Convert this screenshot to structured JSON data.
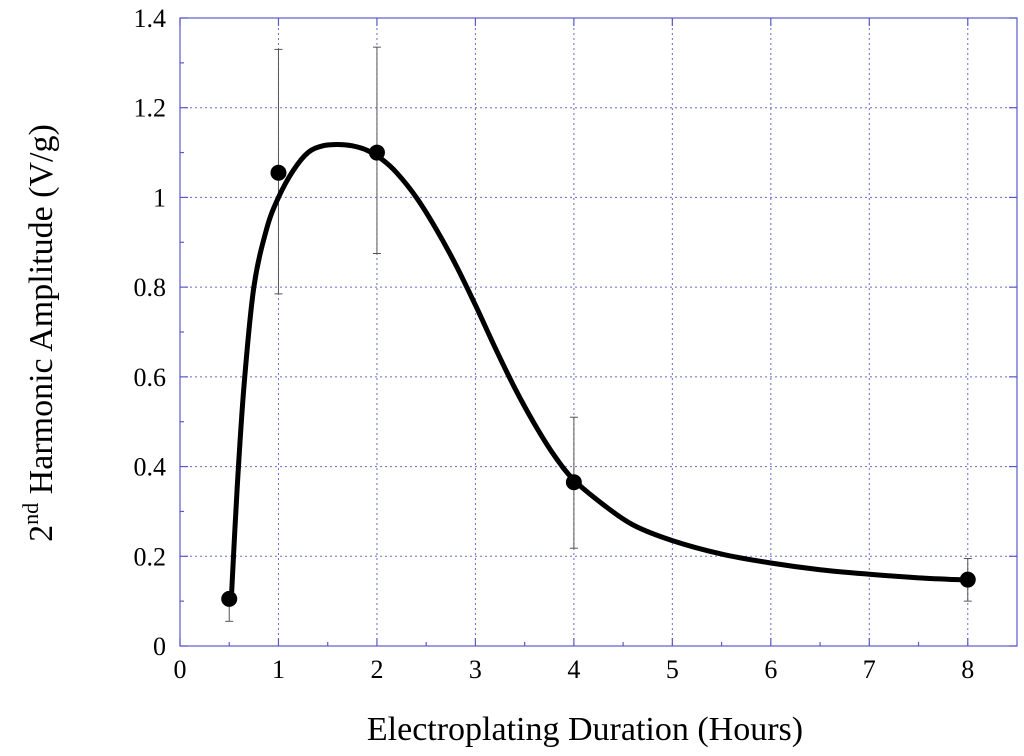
{
  "chart_data": {
    "type": "scatter",
    "xlabel": "Electroplating Duration (Hours)",
    "ylabel": {
      "prefix": "2",
      "superscript": "nd",
      "rest": " Harmonic Amplitude (V/g)"
    },
    "xlim": [
      0,
      8.5
    ],
    "ylim": [
      0,
      1.4
    ],
    "xticks": [
      0,
      1,
      2,
      3,
      4,
      5,
      6,
      7,
      8
    ],
    "yticks": [
      0,
      0.2,
      0.4,
      0.6,
      0.8,
      1,
      1.2,
      1.4
    ],
    "xtick_labels": [
      "0",
      "1",
      "2",
      "3",
      "4",
      "5",
      "6",
      "7",
      "8"
    ],
    "ytick_labels": [
      "0",
      "0.2",
      "0.4",
      "0.6",
      "0.8",
      "1",
      "1.2",
      "1.4"
    ],
    "grid": true,
    "points": [
      {
        "x": 0.5,
        "y": 0.105,
        "err_low": 0.055,
        "err_high": 0.105
      },
      {
        "x": 1,
        "y": 1.055,
        "err_low": 0.785,
        "err_high": 1.33
      },
      {
        "x": 2,
        "y": 1.1,
        "err_low": 0.875,
        "err_high": 1.335
      },
      {
        "x": 4,
        "y": 0.365,
        "err_low": 0.218,
        "err_high": 0.51
      },
      {
        "x": 8,
        "y": 0.148,
        "err_low": 0.1,
        "err_high": 0.195
      }
    ],
    "fit_curve": [
      [
        0.52,
        0.1
      ],
      [
        0.58,
        0.35
      ],
      [
        0.65,
        0.58
      ],
      [
        0.75,
        0.8
      ],
      [
        0.88,
        0.93
      ],
      [
        1.0,
        1.0
      ],
      [
        1.15,
        1.06
      ],
      [
        1.3,
        1.1
      ],
      [
        1.45,
        1.115
      ],
      [
        1.6,
        1.118
      ],
      [
        1.75,
        1.115
      ],
      [
        1.9,
        1.105
      ],
      [
        2.05,
        1.085
      ],
      [
        2.2,
        1.055
      ],
      [
        2.4,
        1.0
      ],
      [
        2.6,
        0.93
      ],
      [
        2.8,
        0.85
      ],
      [
        3.0,
        0.76
      ],
      [
        3.2,
        0.665
      ],
      [
        3.4,
        0.575
      ],
      [
        3.6,
        0.495
      ],
      [
        3.8,
        0.425
      ],
      [
        4.0,
        0.37
      ],
      [
        4.3,
        0.315
      ],
      [
        4.6,
        0.27
      ],
      [
        5.0,
        0.235
      ],
      [
        5.5,
        0.205
      ],
      [
        6.0,
        0.185
      ],
      [
        6.5,
        0.17
      ],
      [
        7.0,
        0.16
      ],
      [
        7.5,
        0.152
      ],
      [
        8.0,
        0.147
      ]
    ]
  }
}
